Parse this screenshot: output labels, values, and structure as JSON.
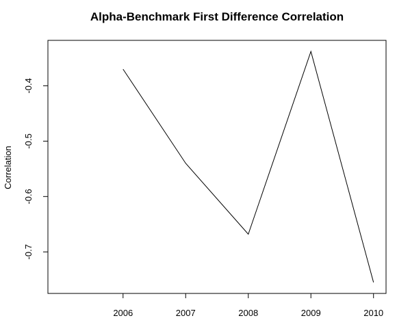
{
  "chart_data": {
    "type": "line",
    "title": "Alpha-Benchmark First Difference Correlation",
    "xlabel": "",
    "ylabel": "Correlation",
    "x": [
      2006,
      2007,
      2008,
      2009,
      2010
    ],
    "x_ticks": [
      "2006",
      "2007",
      "2008",
      "2009",
      "2010"
    ],
    "xlim": [
      2004.8,
      2010.2
    ],
    "series": [
      {
        "values": [
          -0.37,
          -0.54,
          -0.668,
          -0.338,
          -0.755
        ]
      }
    ],
    "y_ticks": [
      -0.4,
      -0.5,
      -0.6,
      -0.7
    ],
    "y_tick_labels": [
      "-0.4",
      "-0.5",
      "-0.6",
      "-0.7"
    ],
    "ylim": [
      -0.775,
      -0.318
    ],
    "grid": false,
    "line_color": "#000000"
  }
}
